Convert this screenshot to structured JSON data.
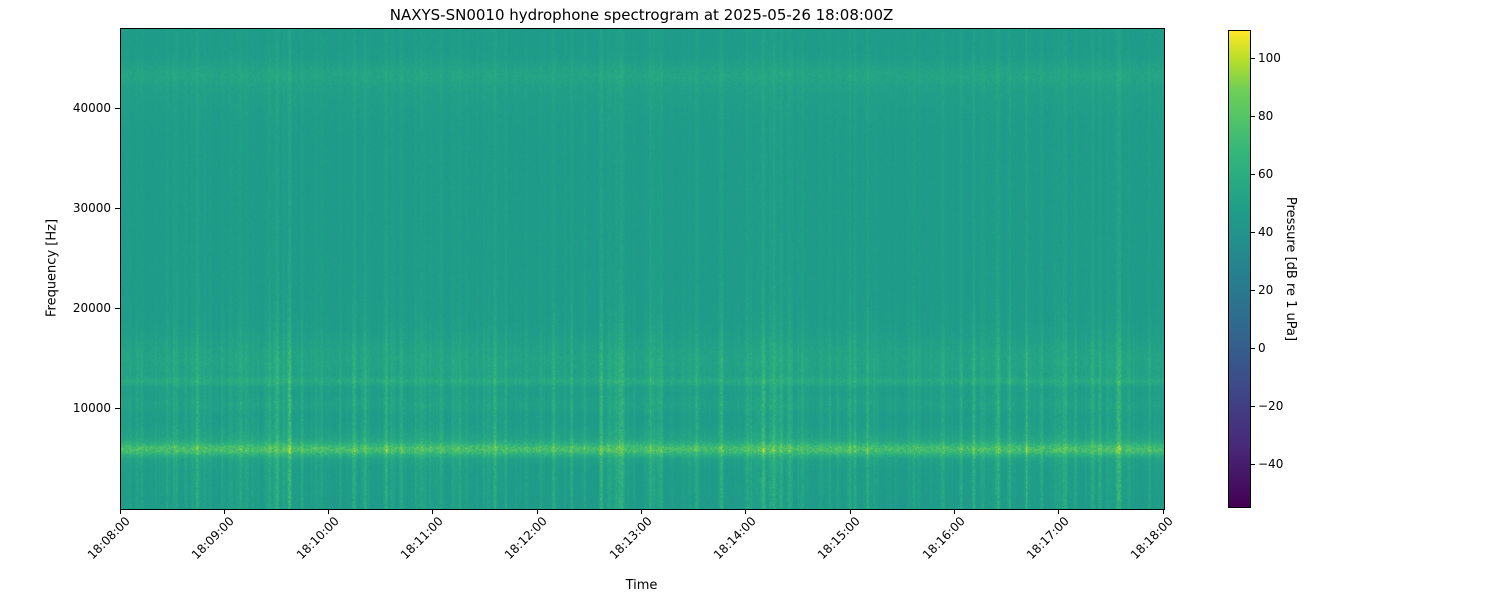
{
  "chart_data": {
    "type": "heatmap",
    "subtype": "spectrogram",
    "title": "NAXYS-SN0010 hydrophone spectrogram at 2025-05-26 18:08:00Z",
    "xlabel": "Time",
    "ylabel": "Frequency [Hz]",
    "x_tick_labels": [
      "18:08:00",
      "18:09:00",
      "18:10:00",
      "18:11:00",
      "18:12:00",
      "18:13:00",
      "18:14:00",
      "18:15:00",
      "18:16:00",
      "18:17:00",
      "18:18:00"
    ],
    "x_tick_rotation_deg": 45,
    "x_span_seconds": 600,
    "y_ticks": [
      10000,
      20000,
      30000,
      40000
    ],
    "y_tick_labels": [
      "10000",
      "20000",
      "30000",
      "40000"
    ],
    "ylim": [
      0,
      48000
    ],
    "grid": false,
    "colorbar": {
      "label": "Pressure [dB re 1 uPa]",
      "tick_values": [
        -40,
        -20,
        0,
        20,
        40,
        60,
        80,
        100
      ],
      "tick_labels": [
        "−40",
        "−20",
        "0",
        "20",
        "40",
        "60",
        "80",
        "100"
      ],
      "clim": [
        -55,
        110
      ],
      "colormap": "viridis",
      "colormap_stops": [
        {
          "pos": 0.0,
          "color": "#440154"
        },
        {
          "pos": 0.125,
          "color": "#482878"
        },
        {
          "pos": 0.25,
          "color": "#3e4989"
        },
        {
          "pos": 0.375,
          "color": "#31688e"
        },
        {
          "pos": 0.5,
          "color": "#26828e"
        },
        {
          "pos": 0.625,
          "color": "#1f9e89"
        },
        {
          "pos": 0.75,
          "color": "#35b779"
        },
        {
          "pos": 0.875,
          "color": "#6ece58"
        },
        {
          "pos": 0.9375,
          "color": "#b5de2b"
        },
        {
          "pos": 1.0,
          "color": "#fde725"
        }
      ]
    },
    "field_summary": {
      "background_db": 47,
      "bands": [
        {
          "center_hz": 6000,
          "width_hz": 900,
          "peak_db": 75,
          "description": "bright speckled tonal band"
        },
        {
          "center_hz": 12800,
          "width_hz": 500,
          "peak_db": 54,
          "description": "faint continuous line"
        },
        {
          "center_hz": 14900,
          "width_hz": 3000,
          "peak_db": 53,
          "description": "speckled transient band"
        },
        {
          "center_hz": 43500,
          "width_hz": 1500,
          "peak_db": 52,
          "description": "faint line near top"
        }
      ],
      "transients": "irregular broadband vertical streaks throughout, strongest below ~17 kHz, denser clusters near 18:09, 18:12, 18:15 and 18:17"
    }
  }
}
